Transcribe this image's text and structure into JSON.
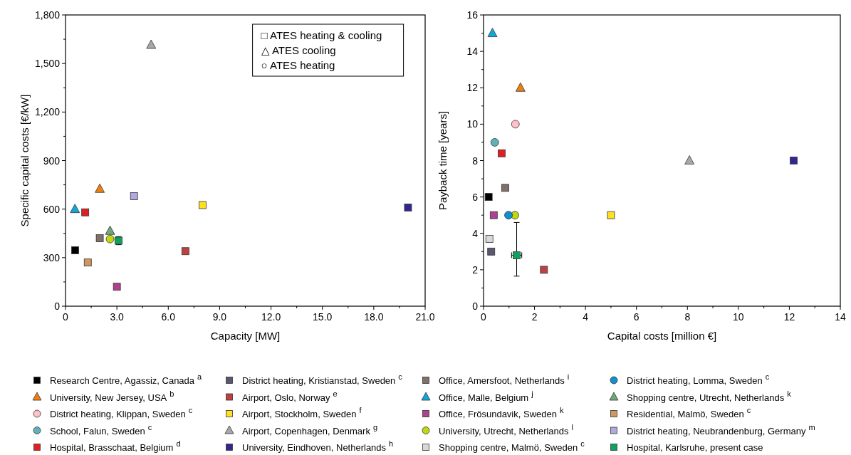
{
  "chart_data": [
    {
      "type": "scatter",
      "xlabel": "Capacity [MW]",
      "ylabel": "Specific capital costs [€/kW]",
      "xlim": [
        0,
        21
      ],
      "ylim": [
        0,
        1800
      ],
      "xticks": [
        0,
        {
          "value": 1.5,
          "label": null
        },
        {
          "value": 3,
          "label": "3.0"
        },
        {
          "value": 4.5,
          "label": null
        },
        {
          "value": 6,
          "label": "6.0"
        },
        {
          "value": 7.5,
          "label": null
        },
        {
          "value": 9,
          "label": "9.0"
        },
        {
          "value": 10.5,
          "label": null
        },
        {
          "value": 12,
          "label": "12.0"
        },
        {
          "value": 13.5,
          "label": null
        },
        {
          "value": 15,
          "label": "15.0"
        },
        {
          "value": 16.5,
          "label": null
        },
        {
          "value": 18,
          "label": "18.0"
        },
        {
          "value": 19.5,
          "label": null
        },
        {
          "value": 21,
          "label": "21.0"
        }
      ],
      "yticks": [
        0,
        {
          "value": 150,
          "label": null
        },
        300,
        {
          "value": 450,
          "label": null
        },
        600,
        {
          "value": 750,
          "label": null
        },
        900,
        {
          "value": 1050,
          "label": null
        },
        {
          "value": 1200,
          "label": "1,200"
        },
        {
          "value": 1350,
          "label": null
        },
        {
          "value": 1500,
          "label": "1,500"
        },
        {
          "value": 1650,
          "label": null
        },
        {
          "value": 1800,
          "label": "1,800"
        }
      ],
      "legend": "bottom",
      "annotations": [
        "□ ATES heating & cooling",
        "△ ATES cooling",
        "○ ATES heating"
      ],
      "series": [
        {
          "name": "Research Centre, Agassiz, Canada$^{a}$",
          "color": "#000000",
          "marker": "square",
          "x": [
            0.56
          ],
          "values": [
            346
          ]
        },
        {
          "name": "University, New Jersey, USA$^{b}$",
          "color": "#f07f10",
          "marker": "triangle",
          "x": [
            2.0
          ],
          "values": [
            725
          ]
        },
        {
          "name": "District heating, Klippan, Sweden$^{c}$",
          "color": "#ffc0c8",
          "marker": "circle",
          "x": [
            null
          ],
          "values": [
            null
          ]
        },
        {
          "name": "School, Falun, Sweden$^{c}$",
          "color": "#60b0b8",
          "marker": "circle",
          "x": [
            null
          ],
          "values": [
            null
          ]
        },
        {
          "name": "Hospital, Brasschaat, Belgium$^{d}$",
          "color": "#e02020",
          "marker": "square",
          "x": [
            1.15
          ],
          "values": [
            580
          ]
        },
        {
          "name": "District heating, Kristianstad, Sweden$^{c}$",
          "color": "#585870",
          "marker": "square",
          "x": [
            null
          ],
          "values": [
            null
          ]
        },
        {
          "name": "Airport, Oslo, Norway$^{e}$",
          "color": "#c04040",
          "marker": "square",
          "x": [
            7.0
          ],
          "values": [
            340
          ]
        },
        {
          "name": "Airport, Stockholm, Sweden$^{f}$",
          "color": "#ffe020",
          "marker": "square",
          "x": [
            8.0
          ],
          "values": [
            625
          ]
        },
        {
          "name": "Airport, Copenhagen, Denmark$^{g}$",
          "color": "#a8a8a8",
          "marker": "triangle",
          "x": [
            5.0
          ],
          "values": [
            1615
          ]
        },
        {
          "name": "University, Eindhoven, Netherlands$^{h}$",
          "color": "#302890",
          "marker": "square",
          "x": [
            20.0
          ],
          "values": [
            610
          ]
        },
        {
          "name": "Office, Amersfoot, Netherlands$^{i}$",
          "color": "#807068",
          "marker": "square",
          "x": [
            2.0
          ],
          "values": [
            420
          ]
        },
        {
          "name": "Office, Malle, Belgium$^{j}$",
          "color": "#10a8d8",
          "marker": "triangle",
          "x": [
            0.55
          ],
          "values": [
            600
          ]
        },
        {
          "name": "Office, Frösundavik, Sweden$^{k}$",
          "color": "#b04090",
          "marker": "square",
          "x": [
            3.0
          ],
          "values": [
            120
          ]
        },
        {
          "name": "University, Utrecht, Netherlands$^{l}$",
          "color": "#c0d810",
          "marker": "circle",
          "x": [
            2.6
          ],
          "values": [
            415
          ]
        },
        {
          "name": "Shopping centre, Malmö, Sweden$^{c}$",
          "color": "#d8d8d8",
          "marker": "square",
          "x": [
            null
          ],
          "values": [
            null
          ]
        },
        {
          "name": "District heating, Lomma, Sweden$^{c}$",
          "color": "#1090d0",
          "marker": "circle",
          "x": [
            null
          ],
          "values": [
            null
          ]
        },
        {
          "name": "Shopping centre, Utrecht, Netherlands$^{k}$",
          "color": "#70a878",
          "marker": "triangle",
          "x": [
            2.6
          ],
          "values": [
            465
          ]
        },
        {
          "name": "Residential, Malmö, Sweden$^{c}$",
          "color": "#d09860",
          "marker": "square",
          "x": [
            1.3
          ],
          "values": [
            270
          ]
        },
        {
          "name": "District heating, Neubrandenburg, Germany$^{m}$",
          "color": "#b0a8e0",
          "marker": "square",
          "x": [
            4.0
          ],
          "values": [
            680
          ]
        },
        {
          "name": "Hospital, Karlsruhe, present case",
          "color": "#10a060",
          "marker": "square",
          "x": [
            3.1
          ],
          "values": [
            405
          ],
          "errors": [
            25
          ]
        }
      ]
    },
    {
      "type": "scatter",
      "xlabel": "Capital costs [million €]",
      "ylabel": "Payback time [years]",
      "xlim": [
        0,
        14
      ],
      "ylim": [
        0,
        16
      ],
      "xticks": [
        0,
        {
          "value": 1,
          "label": null
        },
        2,
        {
          "value": 3,
          "label": null
        },
        4,
        {
          "value": 5,
          "label": null
        },
        6,
        {
          "value": 7,
          "label": null
        },
        8,
        {
          "value": 9,
          "label": null
        },
        10,
        {
          "value": 11,
          "label": null
        },
        12,
        {
          "value": 13,
          "label": null
        },
        14
      ],
      "yticks": [
        0,
        {
          "value": 1,
          "label": null
        },
        2,
        {
          "value": 3,
          "label": null
        },
        4,
        {
          "value": 5,
          "label": null
        },
        6,
        {
          "value": 7,
          "label": null
        },
        8,
        {
          "value": 9,
          "label": null
        },
        10,
        {
          "value": 11,
          "label": null
        },
        12,
        {
          "value": 13,
          "label": null
        },
        14,
        {
          "value": 15,
          "label": null
        },
        16
      ],
      "series": [
        {
          "color": "#000000",
          "marker": "square",
          "x": [
            0.2
          ],
          "values": [
            6
          ]
        },
        {
          "color": "#f07f10",
          "marker": "triangle",
          "x": [
            1.45
          ],
          "values": [
            12
          ]
        },
        {
          "color": "#ffc0c8",
          "marker": "circle",
          "x": [
            1.25
          ],
          "values": [
            10
          ]
        },
        {
          "color": "#60b0b8",
          "marker": "circle",
          "x": [
            0.44
          ],
          "values": [
            9
          ]
        },
        {
          "color": "#e02020",
          "marker": "square",
          "x": [
            0.71
          ],
          "values": [
            8.4
          ]
        },
        {
          "color": "#585870",
          "marker": "square",
          "x": [
            0.3
          ],
          "values": [
            3
          ]
        },
        {
          "color": "#c04040",
          "marker": "square",
          "x": [
            2.37
          ],
          "values": [
            2
          ]
        },
        {
          "color": "#ffe020",
          "marker": "square",
          "x": [
            5.0
          ],
          "values": [
            5
          ]
        },
        {
          "color": "#a8a8a8",
          "marker": "triangle",
          "x": [
            8.08
          ],
          "values": [
            8
          ]
        },
        {
          "color": "#302890",
          "marker": "square",
          "x": [
            12.17
          ],
          "values": [
            8
          ]
        },
        {
          "color": "#807068",
          "marker": "square",
          "x": [
            0.85
          ],
          "values": [
            6.5
          ]
        },
        {
          "color": "#10a8d8",
          "marker": "triangle",
          "x": [
            0.35
          ],
          "values": [
            15
          ]
        },
        {
          "color": "#b04090",
          "marker": "square",
          "x": [
            0.4
          ],
          "values": [
            5
          ]
        },
        {
          "color": "#c0d810",
          "marker": "circle",
          "x": [
            1.23
          ],
          "values": [
            5
          ]
        },
        {
          "color": "#d8d8d8",
          "marker": "square",
          "x": [
            0.23
          ],
          "values": [
            3.7
          ]
        },
        {
          "color": "#1090d0",
          "marker": "circle",
          "x": [
            0.98
          ],
          "values": [
            5
          ]
        },
        {
          "color": "#10a060",
          "marker": "square",
          "x": [
            1.3
          ],
          "values": [
            2.8
          ],
          "errors": [
            [
              1.65,
              4.6
            ]
          ],
          "xerrors": [
            [
              1.1,
              1.5
            ]
          ]
        }
      ]
    }
  ]
}
